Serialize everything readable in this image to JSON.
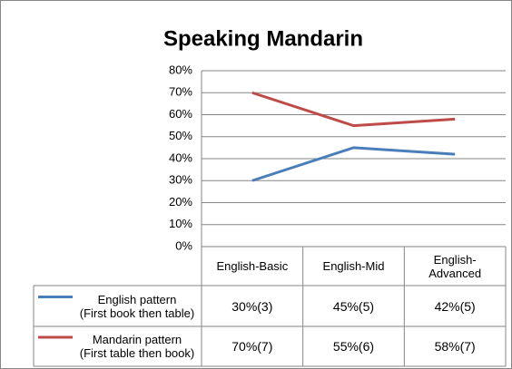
{
  "chart_data": {
    "type": "line",
    "title": "Speaking Mandarin",
    "categories": [
      "English-Basic",
      "English-Mid",
      "English-Advanced"
    ],
    "series": [
      {
        "name": "English pattern\n(First book then table)",
        "color": "#4a7ebb",
        "values": [
          30,
          45,
          42
        ],
        "value_labels": [
          "30%(3)",
          "45%(5)",
          "42%(5)"
        ]
      },
      {
        "name": "Mandarin pattern\n(First table then book)",
        "color": "#be4b48",
        "values": [
          70,
          55,
          58
        ],
        "value_labels": [
          "70%(7)",
          "55%(6)",
          "58%(7)"
        ]
      }
    ],
    "ylim": [
      0,
      80
    ],
    "yticks": [
      {
        "value": 0,
        "label": "0%"
      },
      {
        "value": 10,
        "label": "10%"
      },
      {
        "value": 20,
        "label": "20%"
      },
      {
        "value": 30,
        "label": "30%"
      },
      {
        "value": 40,
        "label": "40%"
      },
      {
        "value": 50,
        "label": "50%"
      },
      {
        "value": 60,
        "label": "60%"
      },
      {
        "value": 70,
        "label": "70%"
      },
      {
        "value": 80,
        "label": "80%"
      }
    ],
    "grid": true
  }
}
